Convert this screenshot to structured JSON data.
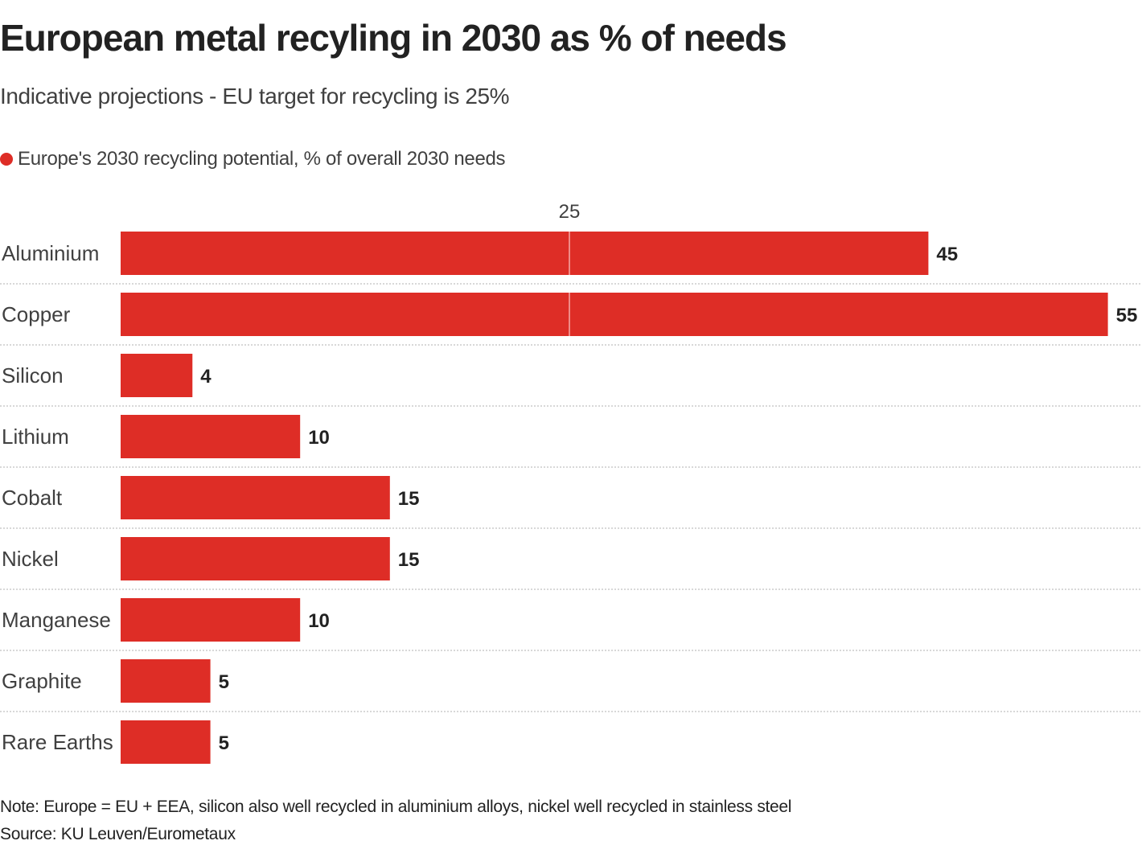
{
  "title": "European metal recyling in 2030 as % of needs",
  "subtitle": "Indicative projections - EU target for recycling is 25%",
  "legend": {
    "label": "Europe's 2030 recycling potential, % of overall 2030 needs",
    "color": "#de2d26"
  },
  "note": "Note: Europe = EU + EEA, silicon also well recycled in aluminium alloys, nickel well recycled in stainless steel",
  "source": "Source: KU Leuven/Eurometaux",
  "chart_data": {
    "type": "bar",
    "orientation": "horizontal",
    "title": "European metal recyling in 2030 as % of needs",
    "subtitle": "Indicative projections - EU target for recycling is 25%",
    "xlabel": "",
    "ylabel": "",
    "categories": [
      "Aluminium",
      "Copper",
      "Silicon",
      "Lithium",
      "Cobalt",
      "Nickel",
      "Manganese",
      "Graphite",
      "Rare Earths"
    ],
    "series": [
      {
        "name": "Europe's 2030 recycling potential, % of overall 2030 needs",
        "color": "#de2d26",
        "values": [
          45,
          55,
          4,
          10,
          15,
          15,
          10,
          5,
          5
        ],
        "labels": [
          "45",
          "55",
          "4",
          "10",
          "15",
          "15",
          "10",
          "5",
          "5"
        ]
      }
    ],
    "reference_line": {
      "value": 25,
      "label": "25"
    },
    "xlim": [
      0,
      55
    ],
    "grid": false,
    "row_separators": true,
    "legend_position": "top-left"
  }
}
